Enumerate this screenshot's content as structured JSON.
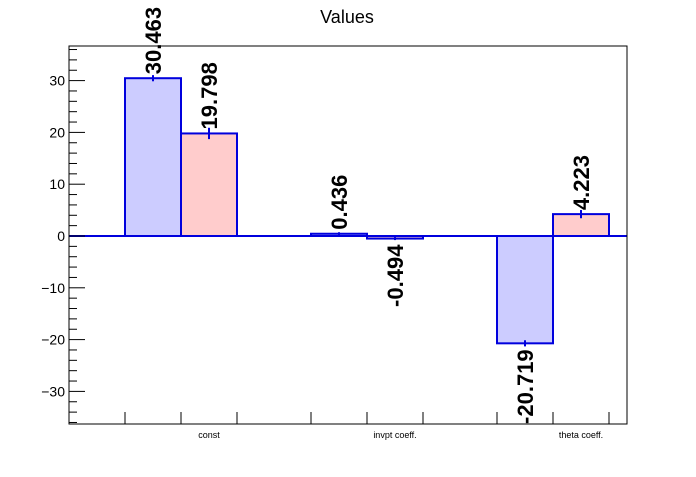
{
  "chart_data": {
    "type": "bar",
    "title": "Values",
    "xlabel": "",
    "ylabel": "",
    "categories": [
      "const",
      "invpt coeff.",
      "theta coeff."
    ],
    "series": [
      {
        "values": [
          30.463,
          0.436,
          -20.719
        ],
        "errors": [
          0.4,
          0.1,
          0.4
        ],
        "labels": [
          "30.463",
          "0.436",
          "-20.719"
        ],
        "fill": "#ccccff",
        "stroke": "#0000dd"
      },
      {
        "values": [
          19.798,
          -0.494,
          4.223
        ],
        "errors": [
          0.9,
          0.1,
          0.6
        ],
        "labels": [
          "19.798",
          "-0.494",
          "4.223"
        ],
        "fill": "#ffcccc",
        "stroke": "#0000dd"
      }
    ],
    "ylim": [
      -36.5,
      36.5
    ],
    "yticks": [
      -30,
      -20,
      -10,
      0,
      10,
      20,
      30
    ],
    "ytick_labels": [
      "−30",
      "−20",
      "−10",
      "0",
      "10",
      "20",
      "30"
    ],
    "grid": false,
    "legend": "none"
  }
}
